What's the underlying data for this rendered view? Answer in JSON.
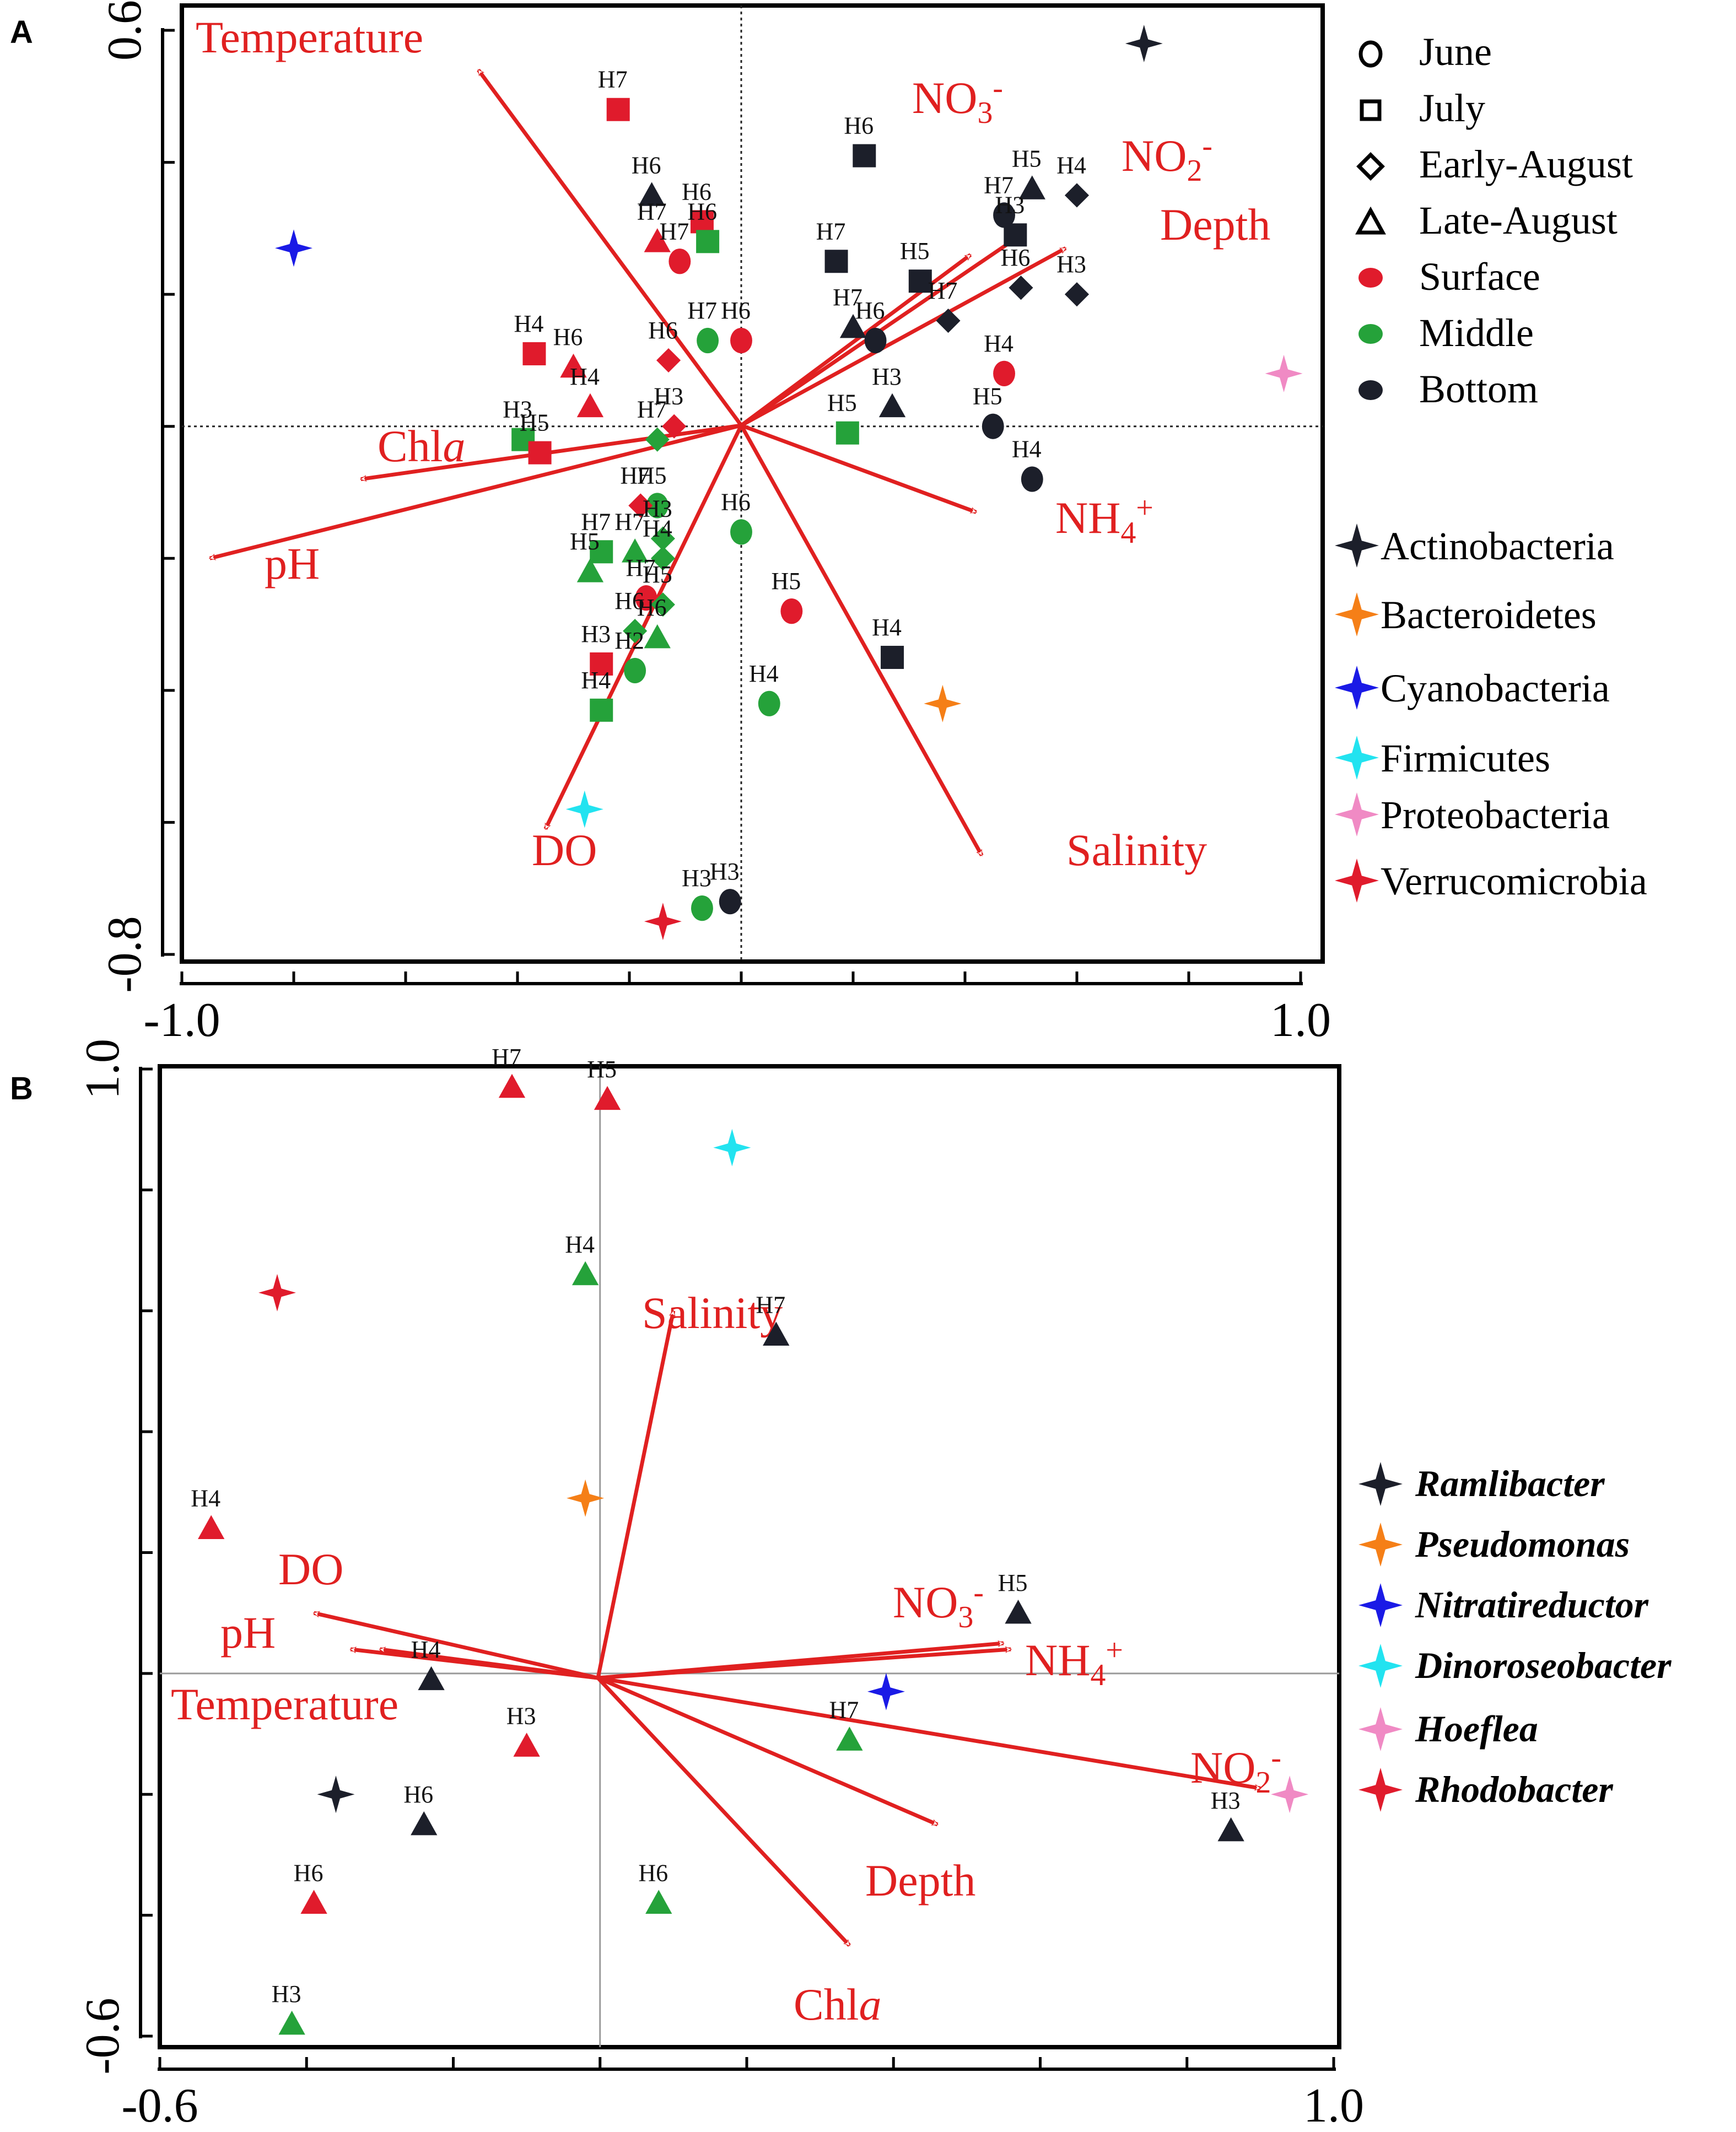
{
  "chart_data": [
    {
      "type": "scatter",
      "panel_label": "A",
      "title": "",
      "xlabel": "",
      "ylabel": "",
      "xlim": [
        -1.0,
        1.0
      ],
      "ylim": [
        -0.8,
        0.6
      ],
      "x_tick_labels": [
        "-1.0",
        "1.0"
      ],
      "y_tick_labels": [
        "0.6",
        "-0.8"
      ],
      "x_ticks": [
        -1.0,
        -0.8,
        -0.6,
        -0.4,
        -0.2,
        0.0,
        0.2,
        0.4,
        0.6,
        0.8,
        1.0
      ],
      "y_ticks": [
        0.6,
        0.4,
        0.2,
        0.0,
        -0.2,
        -0.4,
        -0.6,
        -0.8
      ],
      "grid": false,
      "reference_lines": "dotted lines at x=0 and y=0",
      "arrow_color": "#e02020",
      "arrows": [
        {
          "label": "Temperature",
          "x": -0.47,
          "y": 0.54
        },
        {
          "label": "NO3-",
          "x": 0.41,
          "y": 0.26
        },
        {
          "label": "NO2-",
          "x": 0.5,
          "y": 0.29
        },
        {
          "label": "Depth",
          "x": 0.58,
          "y": 0.27
        },
        {
          "label": "Chla",
          "x": -0.68,
          "y": -0.08
        },
        {
          "label": "pH",
          "x": -0.95,
          "y": -0.2
        },
        {
          "label": "NH4+",
          "x": 0.42,
          "y": -0.13
        },
        {
          "label": "DO",
          "x": -0.35,
          "y": -0.61
        },
        {
          "label": "Salinity",
          "x": 0.43,
          "y": -0.65
        }
      ],
      "shape_legend": [
        {
          "label": "June",
          "shape": "circle"
        },
        {
          "label": "July",
          "shape": "square"
        },
        {
          "label": "Early-August",
          "shape": "diamond"
        },
        {
          "label": "Late-August",
          "shape": "triangle"
        }
      ],
      "color_legend": [
        {
          "label": "Surface",
          "color": "#e01b2c"
        },
        {
          "label": "Middle",
          "color": "#25a23a"
        },
        {
          "label": "Bottom",
          "color": "#1c1f2a"
        }
      ],
      "species_legend": [
        {
          "label": "Actinobacteria",
          "color": "#1c1f2a"
        },
        {
          "label": "Bacteroidetes",
          "color": "#f57f17"
        },
        {
          "label": "Cyanobacteria",
          "color": "#1a1ae6"
        },
        {
          "label": "Firmicutes",
          "color": "#22e3f0"
        },
        {
          "label": "Proteobacteria",
          "color": "#f08ac4"
        },
        {
          "label": "Verrucomicrobia",
          "color": "#e01b2c"
        }
      ],
      "species_points": [
        {
          "name": "Actinobacteria",
          "x": 0.72,
          "y": 0.58,
          "color": "#1c1f2a"
        },
        {
          "name": "Bacteroidetes",
          "x": 0.36,
          "y": -0.42,
          "color": "#f57f17"
        },
        {
          "name": "Cyanobacteria",
          "x": -0.8,
          "y": 0.27,
          "color": "#1a1ae6"
        },
        {
          "name": "Firmicutes",
          "x": -0.28,
          "y": -0.58,
          "color": "#22e3f0"
        },
        {
          "name": "Proteobacteria",
          "x": 0.97,
          "y": 0.08,
          "color": "#f08ac4"
        },
        {
          "name": "Verrucomicrobia",
          "x": -0.14,
          "y": -0.75,
          "color": "#e01b2c"
        }
      ],
      "samples": [
        {
          "label": "H7",
          "x": -0.22,
          "y": 0.48,
          "shape": "square",
          "color": "#e01b2c"
        },
        {
          "label": "H6",
          "x": 0.22,
          "y": 0.41,
          "shape": "square",
          "color": "#1c1f2a"
        },
        {
          "label": "H6",
          "x": -0.16,
          "y": 0.35,
          "shape": "triangle",
          "color": "#1c1f2a"
        },
        {
          "label": "H6",
          "x": -0.07,
          "y": 0.31,
          "shape": "square",
          "color": "#e01b2c"
        },
        {
          "label": "H7",
          "x": -0.15,
          "y": 0.28,
          "shape": "triangle",
          "color": "#e01b2c"
        },
        {
          "label": "H7",
          "x": -0.11,
          "y": 0.25,
          "shape": "circle",
          "color": "#e01b2c"
        },
        {
          "label": "H6",
          "x": -0.06,
          "y": 0.28,
          "shape": "square",
          "color": "#25a23a"
        },
        {
          "label": "H5",
          "x": 0.52,
          "y": 0.36,
          "shape": "triangle",
          "color": "#1c1f2a"
        },
        {
          "label": "H4",
          "x": 0.6,
          "y": 0.35,
          "shape": "diamond",
          "color": "#1c1f2a"
        },
        {
          "label": "H7",
          "x": 0.47,
          "y": 0.32,
          "shape": "circle",
          "color": "#1c1f2a"
        },
        {
          "label": "H3",
          "x": 0.49,
          "y": 0.29,
          "shape": "square",
          "color": "#1c1f2a"
        },
        {
          "label": "H7",
          "x": 0.17,
          "y": 0.25,
          "shape": "square",
          "color": "#1c1f2a"
        },
        {
          "label": "H5",
          "x": 0.32,
          "y": 0.22,
          "shape": "square",
          "color": "#1c1f2a"
        },
        {
          "label": "H7",
          "x": 0.37,
          "y": 0.16,
          "shape": "diamond",
          "color": "#1c1f2a"
        },
        {
          "label": "H6",
          "x": 0.5,
          "y": 0.21,
          "shape": "diamond",
          "color": "#1c1f2a"
        },
        {
          "label": "H3",
          "x": 0.6,
          "y": 0.2,
          "shape": "diamond",
          "color": "#1c1f2a"
        },
        {
          "label": "H7",
          "x": 0.2,
          "y": 0.15,
          "shape": "triangle",
          "color": "#1c1f2a"
        },
        {
          "label": "H6",
          "x": 0.24,
          "y": 0.13,
          "shape": "circle",
          "color": "#1c1f2a"
        },
        {
          "label": "H7",
          "x": -0.06,
          "y": 0.13,
          "shape": "circle",
          "color": "#25a23a"
        },
        {
          "label": "H6",
          "x": 0.0,
          "y": 0.13,
          "shape": "circle",
          "color": "#e01b2c"
        },
        {
          "label": "H6",
          "x": -0.13,
          "y": 0.1,
          "shape": "diamond",
          "color": "#e01b2c"
        },
        {
          "label": "H4",
          "x": -0.37,
          "y": 0.11,
          "shape": "square",
          "color": "#e01b2c"
        },
        {
          "label": "H6",
          "x": -0.3,
          "y": 0.09,
          "shape": "triangle",
          "color": "#e01b2c"
        },
        {
          "label": "H4",
          "x": 0.47,
          "y": 0.08,
          "shape": "circle",
          "color": "#e01b2c"
        },
        {
          "label": "H4",
          "x": -0.27,
          "y": 0.03,
          "shape": "triangle",
          "color": "#e01b2c"
        },
        {
          "label": "H3",
          "x": 0.27,
          "y": 0.03,
          "shape": "triangle",
          "color": "#1c1f2a"
        },
        {
          "label": "H5",
          "x": 0.45,
          "y": 0.0,
          "shape": "circle",
          "color": "#1c1f2a"
        },
        {
          "label": "H3",
          "x": -0.12,
          "y": 0.0,
          "shape": "diamond",
          "color": "#e01b2c"
        },
        {
          "label": "H5",
          "x": 0.19,
          "y": -0.01,
          "shape": "square",
          "color": "#25a23a"
        },
        {
          "label": "H7",
          "x": -0.15,
          "y": -0.02,
          "shape": "diamond",
          "color": "#25a23a"
        },
        {
          "label": "H3",
          "x": -0.39,
          "y": -0.02,
          "shape": "square",
          "color": "#25a23a"
        },
        {
          "label": "H5",
          "x": -0.36,
          "y": -0.04,
          "shape": "square",
          "color": "#e01b2c"
        },
        {
          "label": "H4",
          "x": 0.52,
          "y": -0.08,
          "shape": "circle",
          "color": "#1c1f2a"
        },
        {
          "label": "H5",
          "x": -0.15,
          "y": -0.12,
          "shape": "circle",
          "color": "#25a23a"
        },
        {
          "label": "H7",
          "x": -0.18,
          "y": -0.12,
          "shape": "diamond",
          "color": "#e01b2c"
        },
        {
          "label": "H6",
          "x": 0.0,
          "y": -0.16,
          "shape": "circle",
          "color": "#25a23a"
        },
        {
          "label": "H3",
          "x": -0.14,
          "y": -0.17,
          "shape": "diamond",
          "color": "#25a23a"
        },
        {
          "label": "H7",
          "x": -0.25,
          "y": -0.19,
          "shape": "square",
          "color": "#25a23a"
        },
        {
          "label": "H7",
          "x": -0.19,
          "y": -0.19,
          "shape": "triangle",
          "color": "#25a23a"
        },
        {
          "label": "H4",
          "x": -0.14,
          "y": -0.2,
          "shape": "diamond",
          "color": "#25a23a"
        },
        {
          "label": "H5",
          "x": -0.27,
          "y": -0.22,
          "shape": "triangle",
          "color": "#25a23a"
        },
        {
          "label": "H7",
          "x": -0.17,
          "y": -0.26,
          "shape": "circle",
          "color": "#e01b2c"
        },
        {
          "label": "H5",
          "x": -0.14,
          "y": -0.27,
          "shape": "diamond",
          "color": "#25a23a"
        },
        {
          "label": "H5",
          "x": 0.09,
          "y": -0.28,
          "shape": "circle",
          "color": "#e01b2c"
        },
        {
          "label": "H6",
          "x": -0.19,
          "y": -0.31,
          "shape": "diamond",
          "color": "#25a23a"
        },
        {
          "label": "H6",
          "x": -0.15,
          "y": -0.32,
          "shape": "triangle",
          "color": "#25a23a"
        },
        {
          "label": "H3",
          "x": -0.25,
          "y": -0.36,
          "shape": "square",
          "color": "#e01b2c"
        },
        {
          "label": "H2",
          "x": -0.19,
          "y": -0.37,
          "shape": "circle",
          "color": "#25a23a"
        },
        {
          "label": "H4",
          "x": 0.27,
          "y": -0.35,
          "shape": "square",
          "color": "#1c1f2a"
        },
        {
          "label": "H4",
          "x": 0.05,
          "y": -0.42,
          "shape": "circle",
          "color": "#25a23a"
        },
        {
          "label": "H4",
          "x": -0.25,
          "y": -0.43,
          "shape": "square",
          "color": "#25a23a"
        },
        {
          "label": "H3",
          "x": -0.07,
          "y": -0.73,
          "shape": "circle",
          "color": "#25a23a"
        },
        {
          "label": "H3",
          "x": -0.02,
          "y": -0.72,
          "shape": "circle",
          "color": "#1c1f2a"
        }
      ]
    },
    {
      "type": "scatter",
      "panel_label": "B",
      "title": "",
      "xlabel": "",
      "ylabel": "",
      "xlim": [
        -0.6,
        1.0
      ],
      "ylim": [
        -0.6,
        1.0
      ],
      "x_tick_labels": [
        "-0.6",
        "1.0"
      ],
      "y_tick_labels": [
        "1.0",
        "-0.6"
      ],
      "x_ticks": [
        -0.6,
        -0.4,
        -0.2,
        0.0,
        0.2,
        0.4,
        0.6,
        0.8,
        1.0
      ],
      "y_ticks": [
        1.0,
        0.8,
        0.6,
        0.4,
        0.2,
        0.0,
        -0.2,
        -0.4,
        -0.6
      ],
      "grid": false,
      "reference_lines": "solid gray lines at x=0 and y=0",
      "arrow_color": "#e02020",
      "arrows": [
        {
          "label": "Salinity",
          "x": 0.1,
          "y": 0.6
        },
        {
          "label": "DO",
          "x": -0.39,
          "y": 0.1
        },
        {
          "label": "pH",
          "x": -0.34,
          "y": 0.04
        },
        {
          "label": "Temperature",
          "x": -0.3,
          "y": 0.04
        },
        {
          "label": "NO3-",
          "x": 0.55,
          "y": 0.05
        },
        {
          "label": "NH4+",
          "x": 0.56,
          "y": 0.04
        },
        {
          "label": "NO2-",
          "x": 0.9,
          "y": -0.19
        },
        {
          "label": "Depth",
          "x": 0.46,
          "y": -0.25
        },
        {
          "label": "Chla",
          "x": 0.34,
          "y": -0.45
        }
      ],
      "species_legend": [
        {
          "label": "Ramlibacter",
          "color": "#1c1f2a"
        },
        {
          "label": "Pseudomonas",
          "color": "#f57f17"
        },
        {
          "label": "Nitratireductor",
          "color": "#1a1ae6"
        },
        {
          "label": "Dinoroseobacter",
          "color": "#22e3f0"
        },
        {
          "label": "Hoeflea",
          "color": "#f08ac4"
        },
        {
          "label": "Rhodobacter",
          "color": "#e01b2c"
        }
      ],
      "species_points": [
        {
          "name": "Dinoroseobacter",
          "x": 0.18,
          "y": 0.87,
          "color": "#22e3f0"
        },
        {
          "name": "Rhodobacter",
          "x": -0.44,
          "y": 0.63,
          "color": "#e01b2c"
        },
        {
          "name": "Pseudomonas",
          "x": -0.02,
          "y": 0.29,
          "color": "#f57f17"
        },
        {
          "name": "Nitratireductor",
          "x": 0.39,
          "y": -0.03,
          "color": "#1a1ae6"
        },
        {
          "name": "Hoeflea",
          "x": 0.94,
          "y": -0.2,
          "color": "#f08ac4"
        },
        {
          "name": "Ramlibacter",
          "x": -0.36,
          "y": -0.2,
          "color": "#1c1f2a"
        }
      ],
      "samples": [
        {
          "label": "H7",
          "x": -0.12,
          "y": 0.97,
          "shape": "triangle",
          "color": "#e01b2c"
        },
        {
          "label": "H5",
          "x": 0.01,
          "y": 0.95,
          "shape": "triangle",
          "color": "#e01b2c"
        },
        {
          "label": "H4",
          "x": -0.02,
          "y": 0.66,
          "shape": "triangle",
          "color": "#25a23a"
        },
        {
          "label": "H7",
          "x": 0.24,
          "y": 0.56,
          "shape": "triangle",
          "color": "#1c1f2a"
        },
        {
          "label": "H4",
          "x": -0.53,
          "y": 0.24,
          "shape": "triangle",
          "color": "#e01b2c"
        },
        {
          "label": "H5",
          "x": 0.57,
          "y": 0.1,
          "shape": "triangle",
          "color": "#1c1f2a"
        },
        {
          "label": "H4",
          "x": -0.23,
          "y": -0.01,
          "shape": "triangle",
          "color": "#1c1f2a"
        },
        {
          "label": "H3",
          "x": -0.1,
          "y": -0.12,
          "shape": "triangle",
          "color": "#e01b2c"
        },
        {
          "label": "H7",
          "x": 0.34,
          "y": -0.11,
          "shape": "triangle",
          "color": "#25a23a"
        },
        {
          "label": "H6",
          "x": -0.24,
          "y": -0.25,
          "shape": "triangle",
          "color": "#1c1f2a"
        },
        {
          "label": "H3",
          "x": 0.86,
          "y": -0.26,
          "shape": "triangle",
          "color": "#1c1f2a"
        },
        {
          "label": "H6",
          "x": -0.39,
          "y": -0.38,
          "shape": "triangle",
          "color": "#e01b2c"
        },
        {
          "label": "H6",
          "x": 0.08,
          "y": -0.38,
          "shape": "triangle",
          "color": "#25a23a"
        },
        {
          "label": "H3",
          "x": -0.42,
          "y": -0.58,
          "shape": "triangle",
          "color": "#25a23a"
        }
      ]
    }
  ]
}
